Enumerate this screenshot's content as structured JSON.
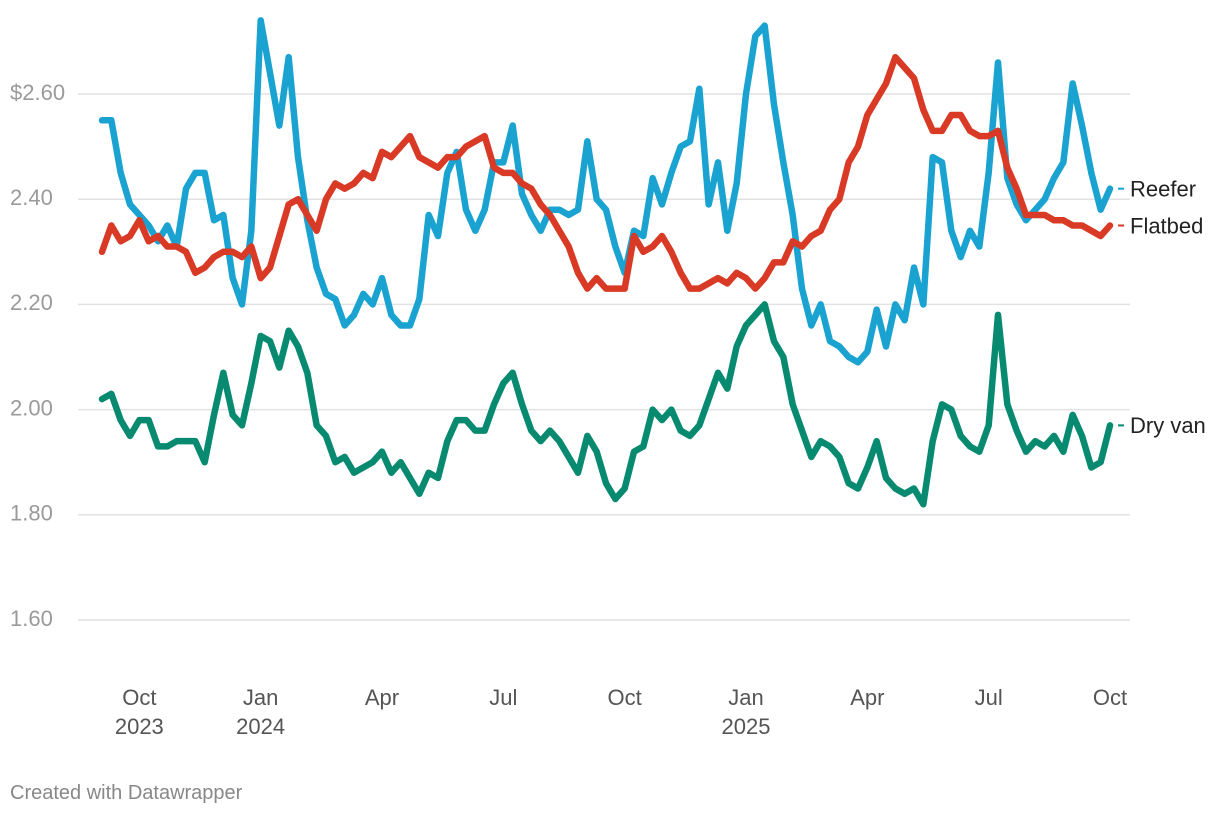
{
  "chart_data": {
    "type": "line",
    "categories": [
      null,
      null,
      null,
      null,
      "Oct 2023",
      null,
      null,
      null,
      null,
      null,
      null,
      null,
      null,
      null,
      null,
      null,
      null,
      "Jan 2024",
      null,
      null,
      null,
      null,
      null,
      null,
      null,
      null,
      null,
      null,
      null,
      null,
      "Apr",
      null,
      null,
      null,
      null,
      null,
      null,
      null,
      null,
      null,
      null,
      null,
      null,
      "Jul",
      null,
      null,
      null,
      null,
      null,
      null,
      null,
      null,
      null,
      null,
      null,
      null,
      "Oct",
      null,
      null,
      null,
      null,
      null,
      null,
      null,
      null,
      null,
      null,
      null,
      null,
      "Jan 2025",
      null,
      null,
      null,
      null,
      null,
      null,
      null,
      null,
      null,
      null,
      null,
      null,
      "Apr",
      null,
      null,
      null,
      null,
      null,
      null,
      null,
      null,
      null,
      null,
      null,
      null,
      "Jul",
      null,
      null,
      null,
      null,
      null,
      null,
      null,
      null,
      null,
      null,
      null,
      null,
      "Oct"
    ],
    "series": [
      {
        "name": "Reefer",
        "color": "#1aa3d1",
        "values": [
          2.55,
          2.55,
          2.45,
          2.39,
          2.37,
          2.35,
          2.32,
          2.35,
          2.31,
          2.42,
          2.45,
          2.45,
          2.36,
          2.37,
          2.25,
          2.2,
          2.34,
          2.74,
          2.64,
          2.54,
          2.67,
          2.48,
          2.36,
          2.27,
          2.22,
          2.21,
          2.16,
          2.18,
          2.22,
          2.2,
          2.25,
          2.18,
          2.16,
          2.16,
          2.21,
          2.37,
          2.33,
          2.45,
          2.49,
          2.38,
          2.34,
          2.38,
          2.47,
          2.47,
          2.54,
          2.41,
          2.37,
          2.34,
          2.38,
          2.38,
          2.37,
          2.38,
          2.51,
          2.4,
          2.38,
          2.31,
          2.26,
          2.34,
          2.33,
          2.44,
          2.39,
          2.45,
          2.5,
          2.51,
          2.61,
          2.39,
          2.47,
          2.34,
          2.43,
          2.6,
          2.71,
          2.73,
          2.58,
          2.47,
          2.37,
          2.23,
          2.16,
          2.2,
          2.13,
          2.12,
          2.1,
          2.09,
          2.11,
          2.19,
          2.12,
          2.2,
          2.17,
          2.27,
          2.2,
          2.48,
          2.47,
          2.34,
          2.29,
          2.34,
          2.31,
          2.45,
          2.66,
          2.44,
          2.39,
          2.36,
          2.38,
          2.4,
          2.44,
          2.47,
          2.62,
          2.54,
          2.45,
          2.38,
          2.42
        ]
      },
      {
        "name": "Flatbed",
        "color": "#d93a25",
        "values": [
          2.3,
          2.35,
          2.32,
          2.33,
          2.36,
          2.32,
          2.33,
          2.31,
          2.31,
          2.3,
          2.26,
          2.27,
          2.29,
          2.3,
          2.3,
          2.29,
          2.31,
          2.25,
          2.27,
          2.33,
          2.39,
          2.4,
          2.37,
          2.34,
          2.4,
          2.43,
          2.42,
          2.43,
          2.45,
          2.44,
          2.49,
          2.48,
          2.5,
          2.52,
          2.48,
          2.47,
          2.46,
          2.48,
          2.48,
          2.5,
          2.51,
          2.52,
          2.46,
          2.45,
          2.45,
          2.43,
          2.42,
          2.39,
          2.37,
          2.34,
          2.31,
          2.26,
          2.23,
          2.25,
          2.23,
          2.23,
          2.23,
          2.33,
          2.3,
          2.31,
          2.33,
          2.3,
          2.26,
          2.23,
          2.23,
          2.24,
          2.25,
          2.24,
          2.26,
          2.25,
          2.23,
          2.25,
          2.28,
          2.28,
          2.32,
          2.31,
          2.33,
          2.34,
          2.38,
          2.4,
          2.47,
          2.5,
          2.56,
          2.59,
          2.62,
          2.67,
          2.65,
          2.63,
          2.57,
          2.53,
          2.53,
          2.56,
          2.56,
          2.53,
          2.52,
          2.52,
          2.53,
          2.46,
          2.42,
          2.37,
          2.37,
          2.37,
          2.36,
          2.36,
          2.35,
          2.35,
          2.34,
          2.33,
          2.35
        ]
      },
      {
        "name": "Dry van",
        "color": "#078a70",
        "values": [
          2.02,
          2.03,
          1.98,
          1.95,
          1.98,
          1.98,
          1.93,
          1.93,
          1.94,
          1.94,
          1.94,
          1.9,
          1.99,
          2.07,
          1.99,
          1.97,
          2.05,
          2.14,
          2.13,
          2.08,
          2.15,
          2.12,
          2.07,
          1.97,
          1.95,
          1.9,
          1.91,
          1.88,
          1.89,
          1.9,
          1.92,
          1.88,
          1.9,
          1.87,
          1.84,
          1.88,
          1.87,
          1.94,
          1.98,
          1.98,
          1.96,
          1.96,
          2.01,
          2.05,
          2.07,
          2.01,
          1.96,
          1.94,
          1.96,
          1.94,
          1.91,
          1.88,
          1.95,
          1.92,
          1.86,
          1.83,
          1.85,
          1.92,
          1.93,
          2.0,
          1.98,
          2.0,
          1.96,
          1.95,
          1.97,
          2.02,
          2.07,
          2.04,
          2.12,
          2.16,
          2.18,
          2.2,
          2.13,
          2.1,
          2.01,
          1.96,
          1.91,
          1.94,
          1.93,
          1.91,
          1.86,
          1.85,
          1.89,
          1.94,
          1.87,
          1.85,
          1.84,
          1.85,
          1.82,
          1.94,
          2.01,
          2.0,
          1.95,
          1.93,
          1.92,
          1.97,
          2.18,
          2.01,
          1.96,
          1.92,
          1.94,
          1.93,
          1.95,
          1.92,
          1.99,
          1.95,
          1.89,
          1.9,
          1.97
        ]
      }
    ],
    "ylim": [
      1.5,
      2.75
    ],
    "yticks": [
      {
        "value": 2.6,
        "label": "$2.60"
      },
      {
        "value": 2.4,
        "label": "2.40"
      },
      {
        "value": 2.2,
        "label": "2.20"
      },
      {
        "value": 2.0,
        "label": "2.00"
      },
      {
        "value": 1.8,
        "label": "1.80"
      },
      {
        "value": 1.6,
        "label": "1.60"
      }
    ],
    "grid": true,
    "credit": "Created with Datawrapper"
  }
}
